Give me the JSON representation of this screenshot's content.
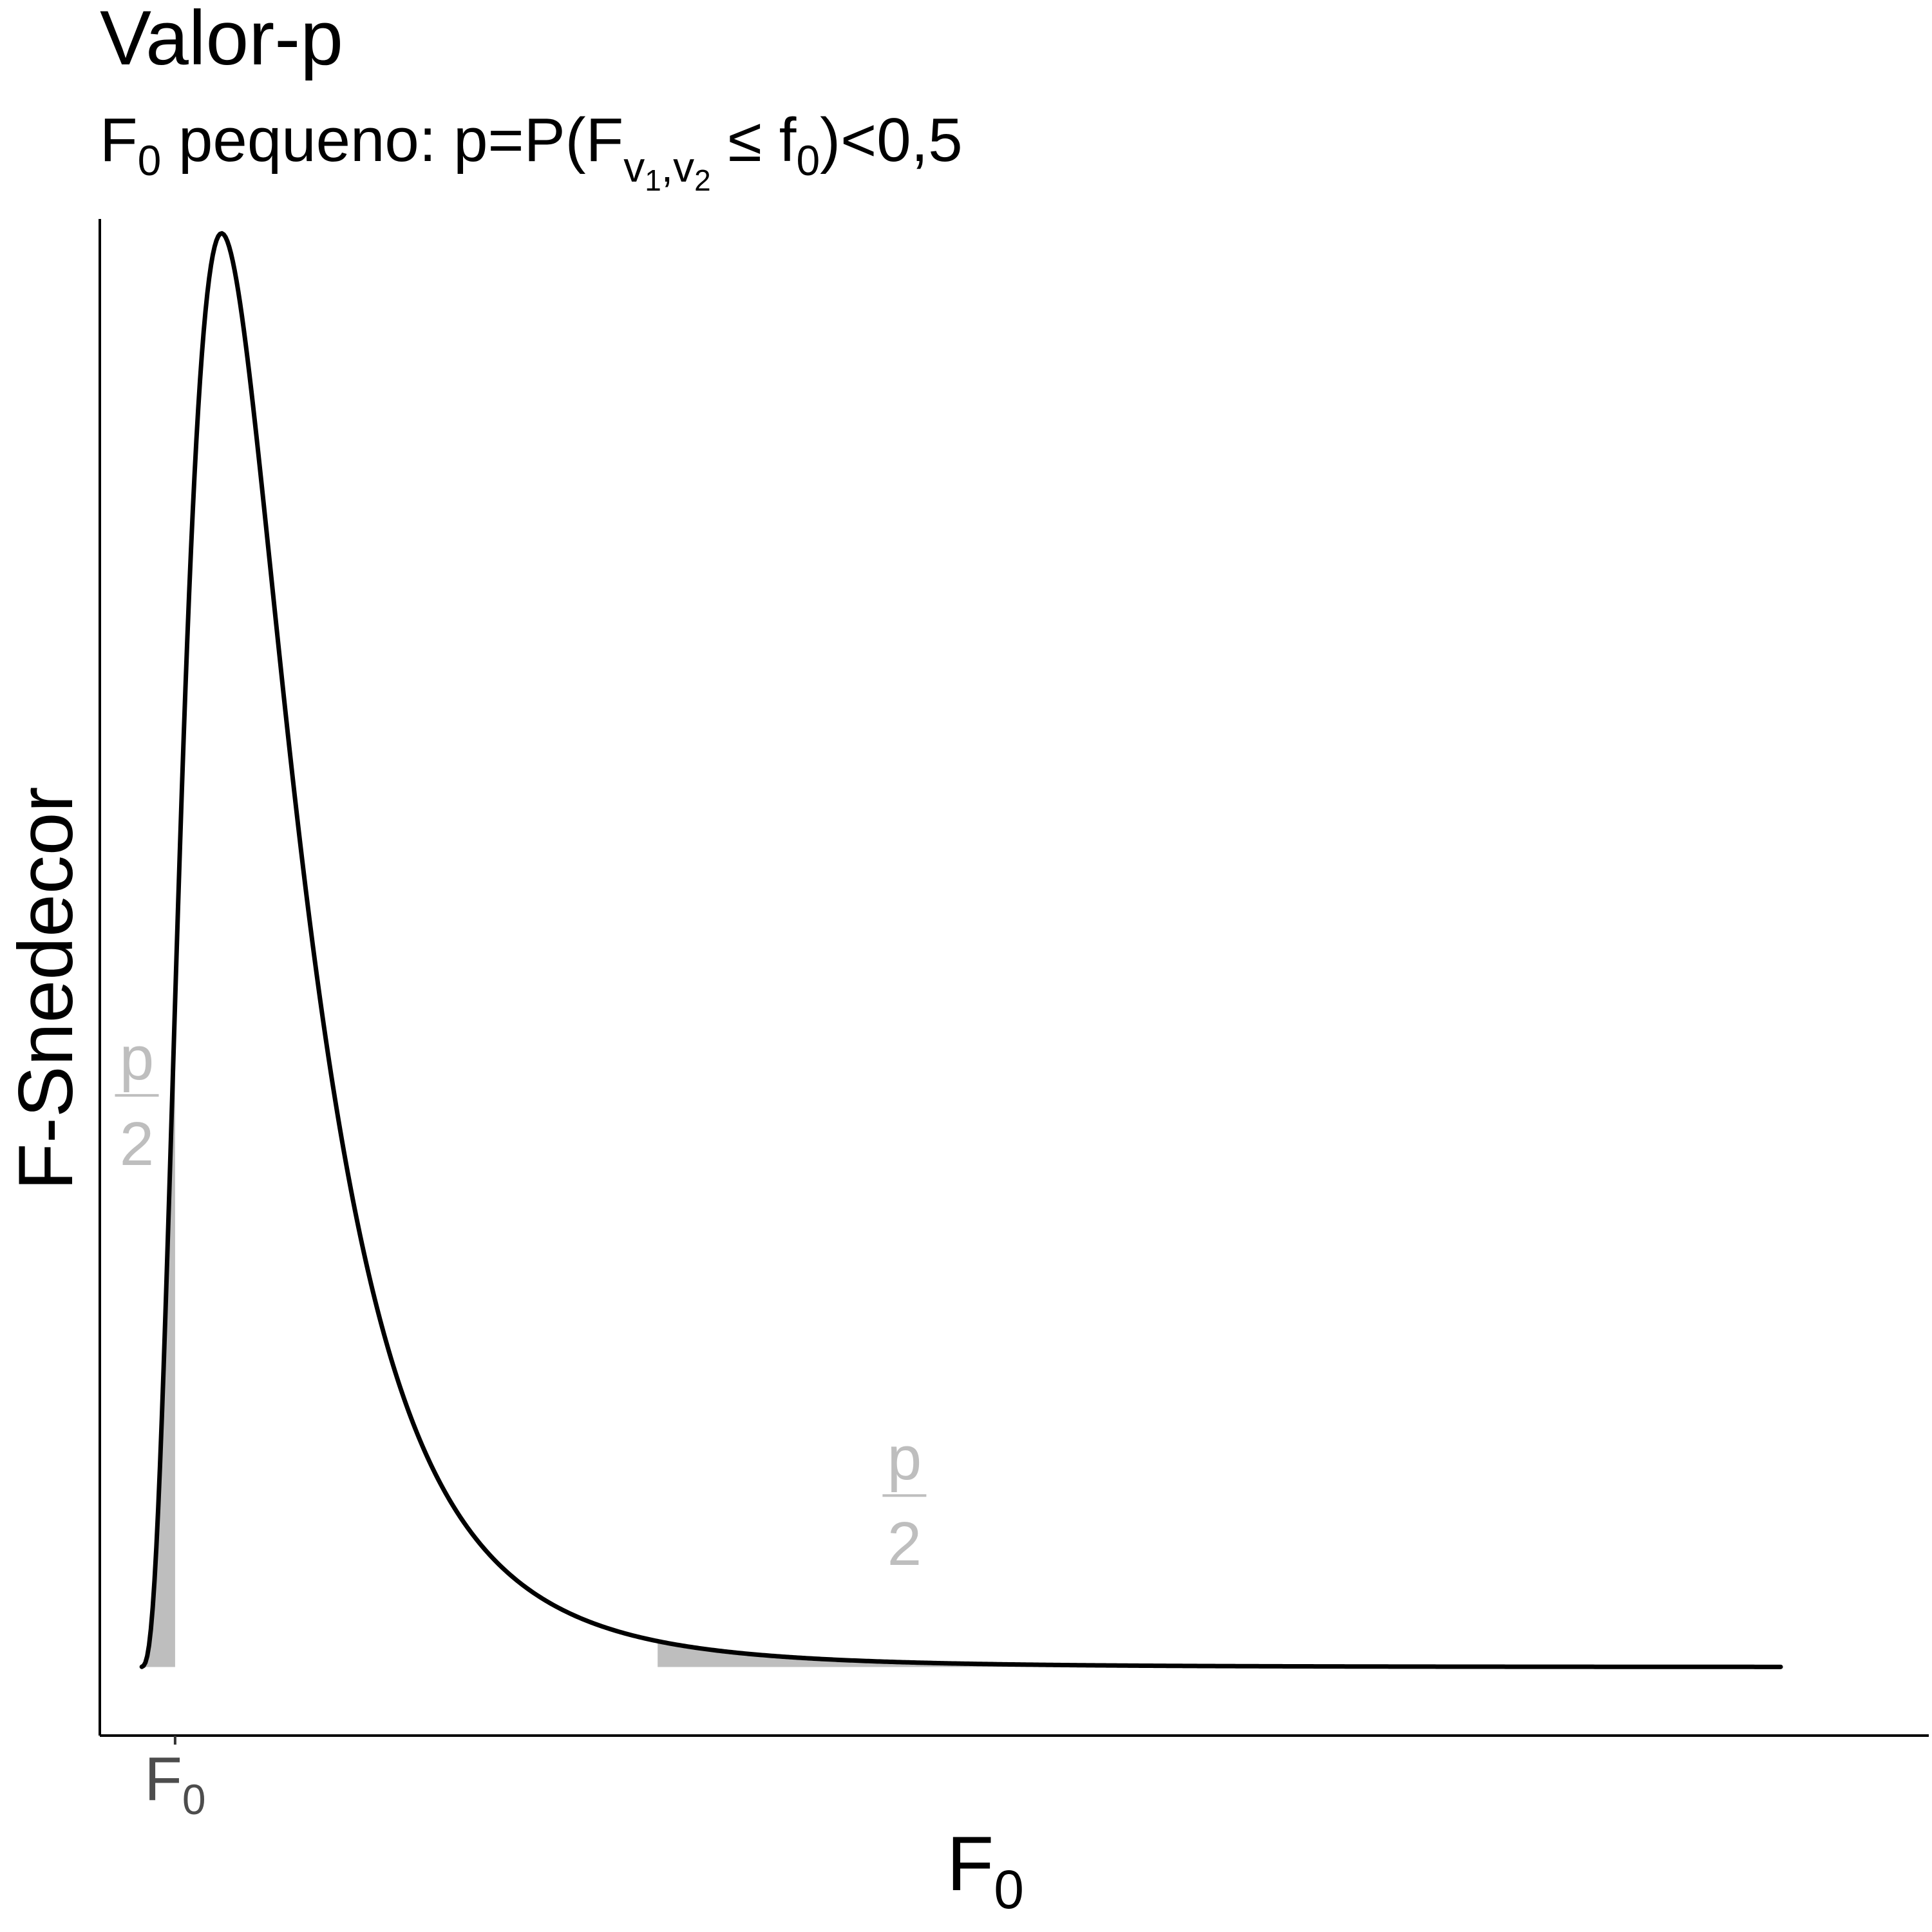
{
  "chart_data": {
    "type": "area",
    "title": "Valor-p",
    "subtitle": {
      "pre": "F",
      "pre_sub": "0",
      "mid": " pequeno: p=P(F",
      "nu1": "v",
      "nu1_sub": "1",
      "comma": ",",
      "nu2": "v",
      "nu2_sub": "2",
      "leq": " ≤ f",
      "f_sub": "0",
      "post": ")<0,5"
    },
    "xlabel": {
      "main": "F",
      "sub": "0"
    },
    "ylabel": "F-Snedecor",
    "x_ticks": [
      {
        "value": 0.29,
        "label": "F",
        "label_sub": "0"
      }
    ],
    "xlim": [
      -0.32,
      14.5
    ],
    "ylim": [
      -0.036,
      0.76
    ],
    "grid": false,
    "legend": "none",
    "series": [
      {
        "distribution": "F",
        "df1": 10,
        "df2": 10,
        "x_range": [
          0.02,
          13.3
        ],
        "color": "#000000"
      }
    ],
    "shaded_regions": [
      {
        "x_from": 0.02,
        "x_to": 0.29,
        "color": "#bebebe",
        "label": {
          "numerator": "p",
          "denominator": "2",
          "x": -0.02,
          "y": 0.3,
          "color": "#bebebe"
        }
      },
      {
        "x_from": 4.2,
        "x_to": 13.3,
        "color": "#bebebe",
        "label": {
          "numerator": "p",
          "denominator": "2",
          "x": 6.2,
          "y": 0.09,
          "color": "#bebebe"
        }
      }
    ]
  }
}
